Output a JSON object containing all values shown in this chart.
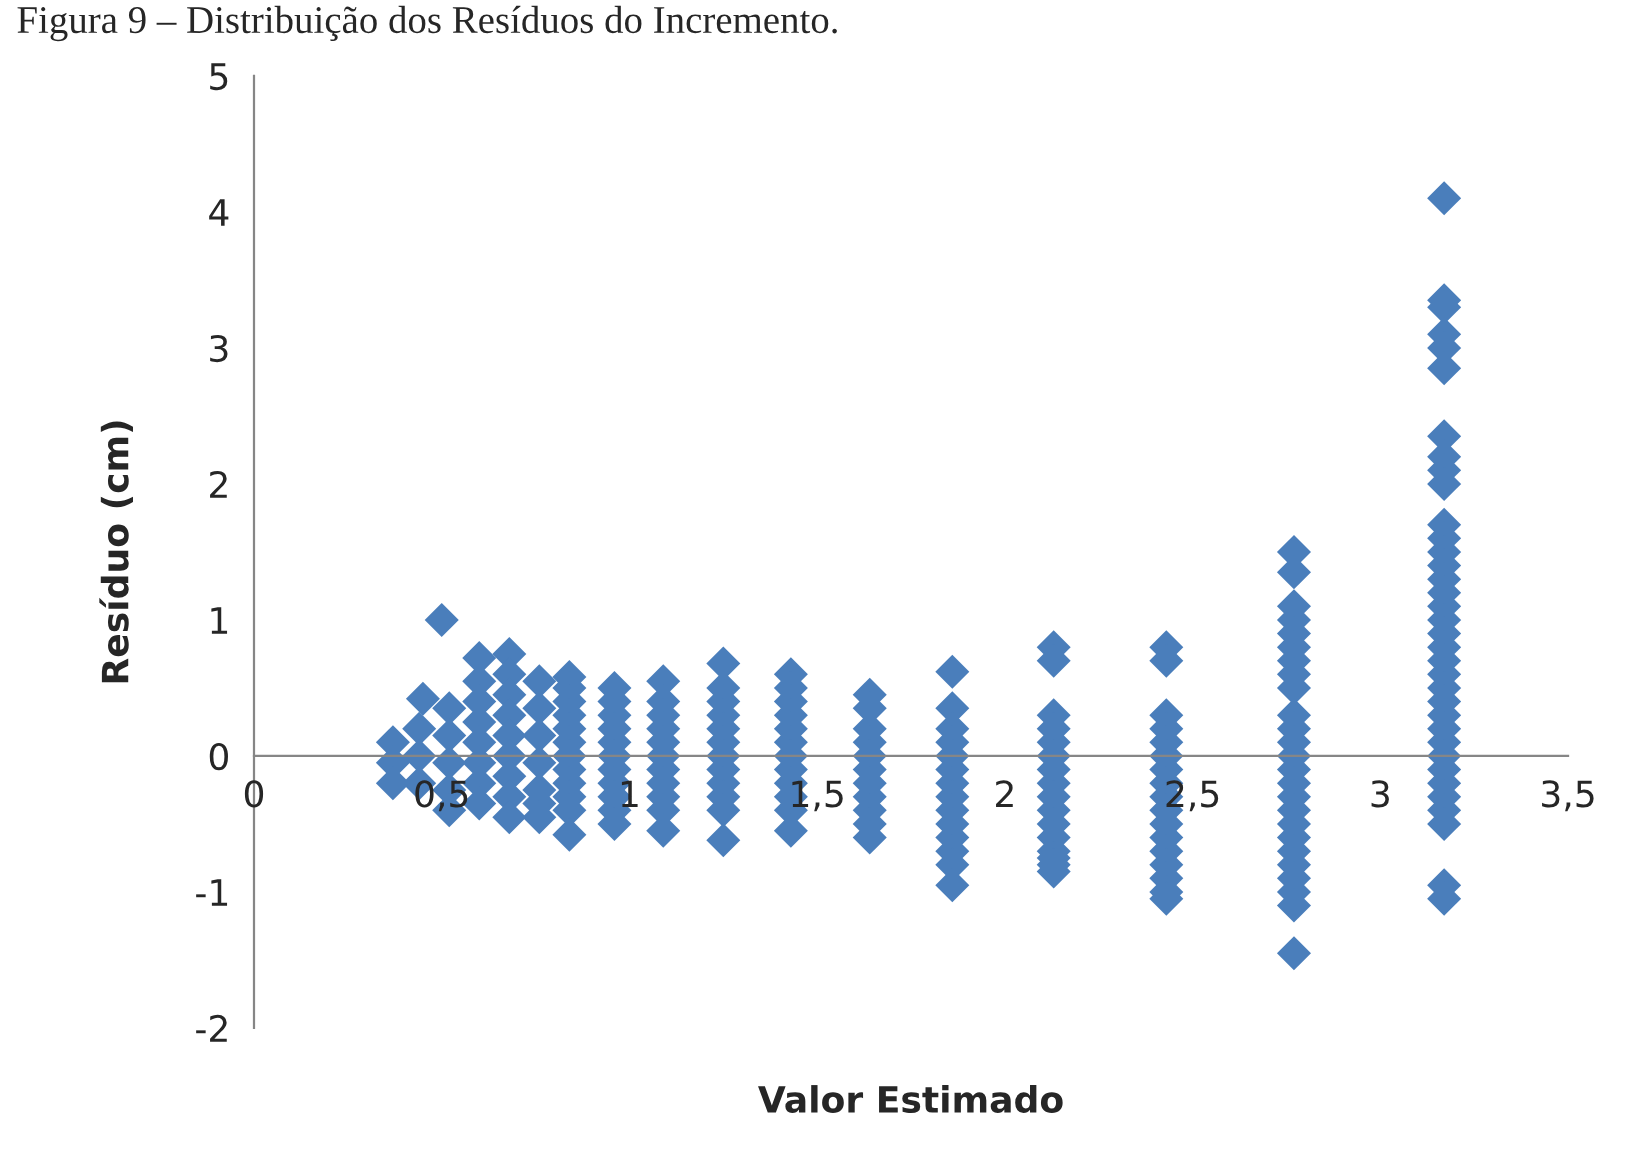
{
  "chart_data": {
    "type": "scatter",
    "title": "Figura 9 – Distribuição dos Resíduos do Incremento.",
    "xlabel": "Valor Estimado",
    "ylabel": "Resíduo (cm)",
    "xlim": [
      0,
      3.5
    ],
    "ylim": [
      -2,
      5
    ],
    "xticks": [
      0,
      {
        "value": 0.5,
        "label": "0,5"
      },
      1,
      {
        "value": 1.5,
        "label": "1,5"
      },
      2,
      {
        "value": 2.5,
        "label": "2,5"
      },
      3,
      {
        "value": 3.5,
        "label": "3,5"
      }
    ],
    "yticks": [
      -2,
      -1,
      0,
      1,
      2,
      3,
      4,
      5
    ],
    "grid": false,
    "marker": "diamond",
    "series": [
      {
        "color": "#4a7ebb",
        "x": [
          3.17,
          3.17,
          3.17,
          3.17,
          3.17,
          3.17,
          3.17,
          3.17,
          3.17,
          3.17,
          3.17,
          3.17,
          3.17,
          3.17,
          3.17,
          3.17,
          3.17,
          3.17,
          3.17,
          3.17,
          3.17,
          3.17,
          3.17,
          3.17,
          3.17,
          3.17,
          3.17,
          3.17,
          3.17,
          3.17,
          3.17,
          3.17,
          3.17,
          3.17,
          3.17,
          2.77,
          2.77,
          2.77,
          2.77,
          2.77,
          2.77,
          2.77,
          2.77,
          2.77,
          2.77,
          2.77,
          2.77,
          2.77,
          2.77,
          2.77,
          2.77,
          2.77,
          2.77,
          2.77,
          2.77,
          2.77,
          2.77,
          2.77,
          2.77,
          2.77,
          2.43,
          2.43,
          2.43,
          2.43,
          2.43,
          2.43,
          2.43,
          2.43,
          2.43,
          2.43,
          2.43,
          2.43,
          2.43,
          2.43,
          2.43,
          2.43,
          2.43,
          2.13,
          2.13,
          2.13,
          2.13,
          2.13,
          2.13,
          2.13,
          2.13,
          2.13,
          2.13,
          2.13,
          2.13,
          2.13,
          2.13,
          2.13,
          2.13,
          1.86,
          1.86,
          1.86,
          1.86,
          1.86,
          1.86,
          1.86,
          1.86,
          1.86,
          1.86,
          1.86,
          1.86,
          1.86,
          1.86,
          1.64,
          1.64,
          1.64,
          1.64,
          1.64,
          1.64,
          1.64,
          1.64,
          1.64,
          1.64,
          1.64,
          1.43,
          1.43,
          1.43,
          1.43,
          1.43,
          1.43,
          1.43,
          1.43,
          1.43,
          1.43,
          1.43,
          1.43,
          1.25,
          1.25,
          1.25,
          1.25,
          1.25,
          1.25,
          1.25,
          1.25,
          1.25,
          1.25,
          1.25,
          1.25,
          1.09,
          1.09,
          1.09,
          1.09,
          1.09,
          1.09,
          1.09,
          1.09,
          1.09,
          1.09,
          1.09,
          0.96,
          0.96,
          0.96,
          0.96,
          0.96,
          0.96,
          0.96,
          0.96,
          0.96,
          0.96,
          0.96,
          0.84,
          0.84,
          0.84,
          0.84,
          0.84,
          0.84,
          0.84,
          0.84,
          0.84,
          0.84,
          0.84,
          0.84,
          0.76,
          0.76,
          0.76,
          0.76,
          0.76,
          0.76,
          0.76,
          0.68,
          0.68,
          0.68,
          0.68,
          0.68,
          0.68,
          0.68,
          0.68,
          0.68,
          0.6,
          0.6,
          0.6,
          0.6,
          0.6,
          0.6,
          0.6,
          0.6,
          0.5,
          0.52,
          0.52,
          0.52,
          0.52,
          0.52,
          0.45,
          0.44,
          0.44,
          0.44,
          0.37,
          0.37,
          0.37
        ],
        "values": [
          4.1,
          3.35,
          3.3,
          3.1,
          3.0,
          2.85,
          2.35,
          2.2,
          2.1,
          2.0,
          1.7,
          1.6,
          1.5,
          1.4,
          1.3,
          1.2,
          1.1,
          1.0,
          0.9,
          0.8,
          0.7,
          0.6,
          0.5,
          0.4,
          0.3,
          0.2,
          0.1,
          0.0,
          -0.1,
          -0.2,
          -0.3,
          -0.4,
          -0.5,
          -0.95,
          -1.05,
          1.5,
          1.35,
          1.1,
          1.0,
          0.9,
          0.8,
          0.7,
          0.6,
          0.5,
          0.3,
          0.2,
          0.1,
          0.0,
          -0.1,
          -0.2,
          -0.3,
          -0.4,
          -0.5,
          -0.6,
          -0.7,
          -0.8,
          -0.9,
          -1.0,
          -1.1,
          -1.45,
          0.8,
          0.7,
          0.3,
          0.2,
          0.1,
          0.0,
          -0.1,
          -0.2,
          -0.3,
          -0.4,
          -0.5,
          -0.6,
          -0.7,
          -0.8,
          -0.9,
          -1.0,
          -1.05,
          0.8,
          0.7,
          0.3,
          0.2,
          0.1,
          0.0,
          -0.1,
          -0.2,
          -0.3,
          -0.4,
          -0.5,
          -0.6,
          -0.7,
          -0.75,
          -0.8,
          -0.85,
          0.62,
          0.35,
          0.2,
          0.1,
          0.0,
          -0.1,
          -0.2,
          -0.3,
          -0.4,
          -0.5,
          -0.6,
          -0.7,
          -0.8,
          -0.95,
          0.45,
          0.35,
          0.2,
          0.1,
          0.0,
          -0.1,
          -0.2,
          -0.3,
          -0.4,
          -0.5,
          -0.6,
          0.6,
          0.5,
          0.4,
          0.3,
          0.2,
          0.1,
          0.0,
          -0.1,
          -0.2,
          -0.3,
          -0.4,
          -0.55,
          0.68,
          0.5,
          0.4,
          0.3,
          0.2,
          0.1,
          0.0,
          -0.1,
          -0.2,
          -0.3,
          -0.4,
          -0.62,
          0.55,
          0.4,
          0.3,
          0.2,
          0.1,
          0.0,
          -0.1,
          -0.2,
          -0.3,
          -0.4,
          -0.55,
          0.5,
          0.4,
          0.3,
          0.2,
          0.1,
          0.0,
          -0.1,
          -0.2,
          -0.3,
          -0.4,
          -0.5,
          0.58,
          0.5,
          0.4,
          0.3,
          0.2,
          0.1,
          0.0,
          -0.1,
          -0.2,
          -0.3,
          -0.4,
          -0.58,
          0.55,
          0.35,
          0.15,
          -0.05,
          -0.25,
          -0.35,
          -0.45,
          0.75,
          0.6,
          0.45,
          0.3,
          0.15,
          0.0,
          -0.15,
          -0.3,
          -0.45,
          0.72,
          0.55,
          0.4,
          0.25,
          0.1,
          -0.05,
          -0.2,
          -0.35,
          1.0,
          0.35,
          0.15,
          -0.05,
          -0.25,
          -0.4,
          0.42,
          0.2,
          0.0,
          -0.2,
          0.1,
          -0.05,
          -0.2
        ]
      }
    ]
  }
}
